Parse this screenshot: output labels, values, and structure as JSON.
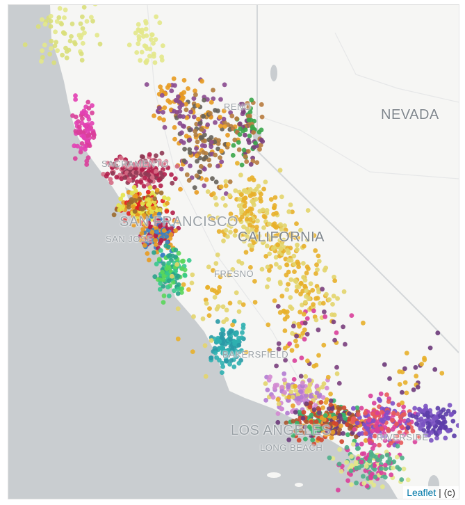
{
  "map": {
    "labels": {
      "state_nevada": "NEVADA",
      "state_california": "CALIFORNIA",
      "city_reno": "RENO",
      "city_sacramento": "SACRAMENTO",
      "city_san_francisco": "SAN FRANCISCO",
      "city_san_jose": "SAN JOSE",
      "city_fresno": "FRESNO",
      "city_bakersfield": "BAKERSFIELD",
      "city_los_angeles": "LOS ANGELES",
      "city_long_beach": "LONG BEACH",
      "city_riverside": "RIVERSIDE"
    },
    "attribution": {
      "link_text": "Leaflet",
      "suffix": " | (c)"
    },
    "colors": {
      "water": "#c9cdd0",
      "land": "#f6f6f4",
      "state_border": "#d4d7d9"
    }
  }
}
